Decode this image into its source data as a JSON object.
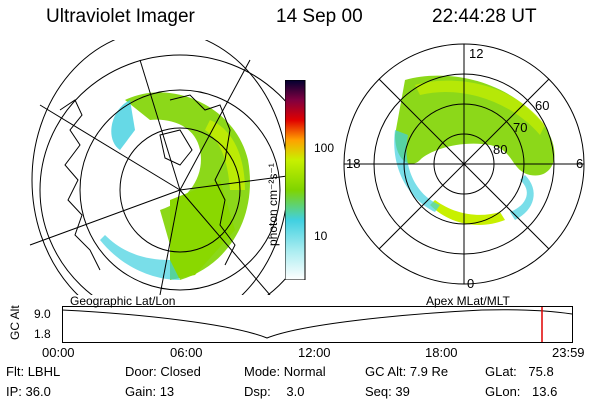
{
  "header": {
    "instrument": "Ultraviolet Imager",
    "date": "14 Sep 00",
    "time": "22:44:28 UT"
  },
  "colorbar": {
    "unit_label": "photon cm⁻²s⁻¹",
    "ticks": [
      "100",
      "10"
    ]
  },
  "polar_plot": {
    "labels": {
      "top": "12",
      "left": "18",
      "right": "6",
      "bottom": "0"
    },
    "lat_labels": [
      "60",
      "70",
      "80"
    ]
  },
  "captions": {
    "left": "Geographic Lat/Lon",
    "right": "Apex  MLat/MLT"
  },
  "timeline": {
    "ylabel": "GC Alt",
    "y_ticks": [
      "9.0",
      "1.8"
    ],
    "x_ticks": [
      "00:00",
      "06:00",
      "12:00",
      "18:00",
      "23:59"
    ],
    "marker_color": "#e00000"
  },
  "status": {
    "flt_label": "Flt:",
    "flt_value": "LBHL",
    "ip_label": "IP:",
    "ip_value": "36.0",
    "door_label": "Door:",
    "door_value": "Closed",
    "gain_label": "Gain:",
    "gain_value": "13",
    "mode_label": "Mode:",
    "mode_value": "Normal",
    "dsp_label": "Dsp:",
    "dsp_value": "3.0",
    "gcalt_label": "GC Alt:",
    "gcalt_value": "7.9 Re",
    "seq_label": "Seq:",
    "seq_value": "39",
    "glat_label": "GLat:",
    "glat_value": "75.8",
    "glon_label": "GLon:",
    "glon_value": "13.6"
  },
  "colors": {
    "green": "#7fd400",
    "yellow_green": "#c8f000",
    "cyan": "#40d0e0",
    "light_cyan": "#a8ecf0"
  }
}
